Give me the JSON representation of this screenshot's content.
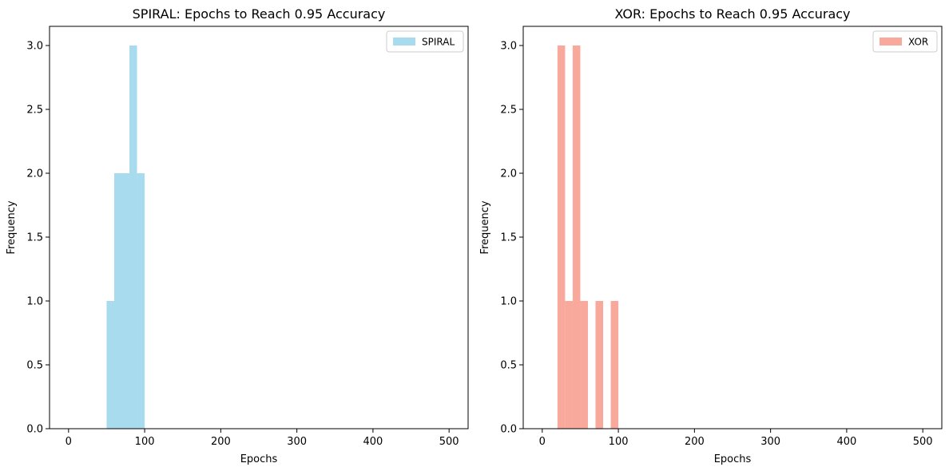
{
  "chart_data": [
    {
      "type": "bar",
      "title": "SPIRAL: Epochs to Reach 0.95 Accuracy",
      "xlabel": "Epochs",
      "ylabel": "Frequency",
      "xlim": [
        -25,
        525
      ],
      "ylim": [
        0,
        3.15
      ],
      "xticks": [
        0,
        100,
        200,
        300,
        400,
        500
      ],
      "yticks": [
        0.0,
        0.5,
        1.0,
        1.5,
        2.0,
        2.5,
        3.0
      ],
      "xtick_labels": [
        "0",
        "100",
        "200",
        "300",
        "400",
        "500"
      ],
      "ytick_labels": [
        "0.0",
        "0.5",
        "1.0",
        "1.5",
        "2.0",
        "2.5",
        "3.0"
      ],
      "legend_position": "top-right",
      "series": [
        {
          "name": "SPIRAL",
          "color": "#a8dbee",
          "bins": [
            {
              "x0": 50,
              "x1": 60,
              "count": 1
            },
            {
              "x0": 60,
              "x1": 70,
              "count": 2
            },
            {
              "x0": 70,
              "x1": 80,
              "count": 2
            },
            {
              "x0": 80,
              "x1": 90,
              "count": 3
            },
            {
              "x0": 90,
              "x1": 100,
              "count": 2
            }
          ]
        }
      ]
    },
    {
      "type": "bar",
      "title": "XOR: Epochs to Reach 0.95 Accuracy",
      "xlabel": "Epochs",
      "ylabel": "Frequency",
      "xlim": [
        -25,
        525
      ],
      "ylim": [
        0,
        3.15
      ],
      "xticks": [
        0,
        100,
        200,
        300,
        400,
        500
      ],
      "yticks": [
        0.0,
        0.5,
        1.0,
        1.5,
        2.0,
        2.5,
        3.0
      ],
      "xtick_labels": [
        "0",
        "100",
        "200",
        "300",
        "400",
        "500"
      ],
      "ytick_labels": [
        "0.0",
        "0.5",
        "1.0",
        "1.5",
        "2.0",
        "2.5",
        "3.0"
      ],
      "legend_position": "top-right",
      "series": [
        {
          "name": "XOR",
          "color": "#f9a89c",
          "bins": [
            {
              "x0": 20,
              "x1": 30,
              "count": 3
            },
            {
              "x0": 30,
              "x1": 40,
              "count": 1
            },
            {
              "x0": 40,
              "x1": 50,
              "count": 3
            },
            {
              "x0": 50,
              "x1": 60,
              "count": 1
            },
            {
              "x0": 70,
              "x1": 80,
              "count": 1
            },
            {
              "x0": 90,
              "x1": 100,
              "count": 1
            }
          ]
        }
      ]
    }
  ]
}
